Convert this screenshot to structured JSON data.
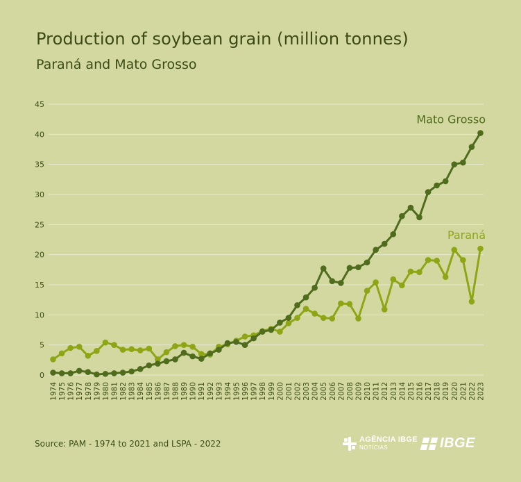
{
  "header": {
    "title": "Production of soybean grain (million tonnes)",
    "subtitle": "Paraná and Mato Grosso"
  },
  "footer": {
    "source": "Source: PAM - 1974 to 2021 and LSPA  -  2022",
    "agency_logo_line1": "AGÊNCIA IBGE",
    "agency_logo_line2": "NOTÍCIAS",
    "ibge_logo": "IBGE"
  },
  "colors": {
    "background": "#d2d8a0",
    "mato_grosso": "#4f6b1c",
    "parana": "#8ea615",
    "grid": "#e6ead0",
    "text": "#3b4a14",
    "logo": "#ffffff"
  },
  "chart_data": {
    "type": "line",
    "title": "Production of soybean grain (million tonnes)",
    "subtitle": "Paraná and Mato Grosso",
    "xlabel": "",
    "ylabel": "",
    "ylim": [
      0,
      45
    ],
    "yticks": [
      0,
      5,
      10,
      15,
      20,
      25,
      30,
      35,
      40,
      45
    ],
    "grid": true,
    "legend": "inline labels at series ends",
    "x": [
      "1974",
      "1975",
      "1976",
      "1977",
      "1978",
      "1979",
      "1980",
      "1981",
      "1982",
      "1983",
      "1984",
      "1985",
      "1986",
      "1987",
      "1988",
      "1989",
      "1990",
      "1991",
      "1992",
      "1993",
      "1994",
      "1995",
      "1996",
      "1997",
      "1998",
      "1999",
      "2000",
      "2001",
      "2002",
      "2003",
      "2004",
      "2005",
      "2006",
      "2007",
      "2008",
      "2009",
      "2010",
      "2011",
      "2012",
      "2013",
      "2014",
      "2015",
      "2016",
      "2017",
      "2018",
      "2019",
      "2020",
      "2021",
      "2022",
      "2023"
    ],
    "series": [
      {
        "name": "Mato Grosso",
        "color": "#4f6b1c",
        "values": [
          0.4,
          0.3,
          0.3,
          0.7,
          0.5,
          0.1,
          0.2,
          0.3,
          0.4,
          0.6,
          1.0,
          1.6,
          1.9,
          2.3,
          2.6,
          3.7,
          3.1,
          2.7,
          3.6,
          4.2,
          5.3,
          5.5,
          5.0,
          6.1,
          7.2,
          7.5,
          8.7,
          9.5,
          11.6,
          12.9,
          14.5,
          17.7,
          15.6,
          15.3,
          17.8,
          17.9,
          18.7,
          20.8,
          21.8,
          23.4,
          26.4,
          27.8,
          26.2,
          30.4,
          31.5,
          32.2,
          35.0,
          35.3,
          37.9,
          40.2
        ]
      },
      {
        "name": "Paraná",
        "color": "#8ea615",
        "values": [
          2.6,
          3.6,
          4.5,
          4.7,
          3.2,
          4.0,
          5.4,
          5.0,
          4.2,
          4.3,
          4.1,
          4.4,
          2.6,
          3.8,
          4.8,
          5.0,
          4.7,
          3.5,
          3.4,
          4.7,
          5.1,
          5.7,
          6.4,
          6.6,
          7.3,
          7.7,
          7.2,
          8.6,
          9.5,
          11.0,
          10.2,
          9.5,
          9.4,
          11.9,
          11.8,
          9.4,
          14.0,
          15.4,
          10.9,
          15.9,
          14.9,
          17.2,
          17.1,
          19.1,
          19.0,
          16.3,
          20.8,
          19.1,
          12.2,
          21.0
        ]
      }
    ]
  }
}
